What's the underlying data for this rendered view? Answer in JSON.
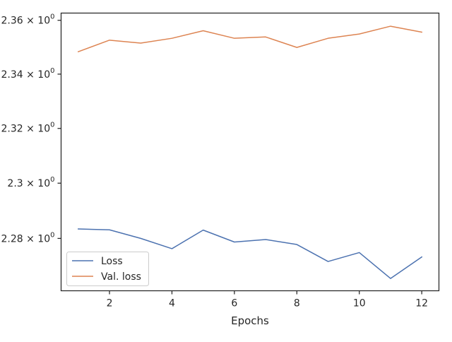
{
  "chart_data": {
    "type": "line",
    "xlabel": "Epochs",
    "ylabel": "",
    "title": "",
    "yscale": "log",
    "xlim": [
      0.45,
      12.55
    ],
    "ylim": [
      2.2612,
      2.3627
    ],
    "x_ticks": [
      2,
      4,
      6,
      8,
      10,
      12
    ],
    "y_ticks": [
      {
        "value": 2.28,
        "mantissa": "2.28",
        "exp": "0"
      },
      {
        "value": 2.3,
        "mantissa": "2.3",
        "exp": "0"
      },
      {
        "value": 2.32,
        "mantissa": "2.32",
        "exp": "0"
      },
      {
        "value": 2.34,
        "mantissa": "2.34",
        "exp": "0"
      },
      {
        "value": 2.36,
        "mantissa": "2.36",
        "exp": "0"
      }
    ],
    "x": [
      1,
      2,
      3,
      4,
      5,
      6,
      7,
      8,
      9,
      10,
      11,
      12
    ],
    "series": [
      {
        "name": "Loss",
        "color": "#4c72b0",
        "values": [
          2.2834,
          2.2831,
          2.28,
          2.2763,
          2.283,
          2.2787,
          2.2796,
          2.2778,
          2.2717,
          2.2749,
          2.2656,
          2.2733
        ]
      },
      {
        "name": "Val. loss",
        "color": "#dd8452",
        "values": [
          2.3483,
          2.3526,
          2.3515,
          2.3533,
          2.3561,
          2.3533,
          2.3538,
          2.3499,
          2.3533,
          2.3549,
          2.3578,
          2.3556
        ]
      }
    ],
    "grid": false,
    "legend": "bottom-left"
  }
}
